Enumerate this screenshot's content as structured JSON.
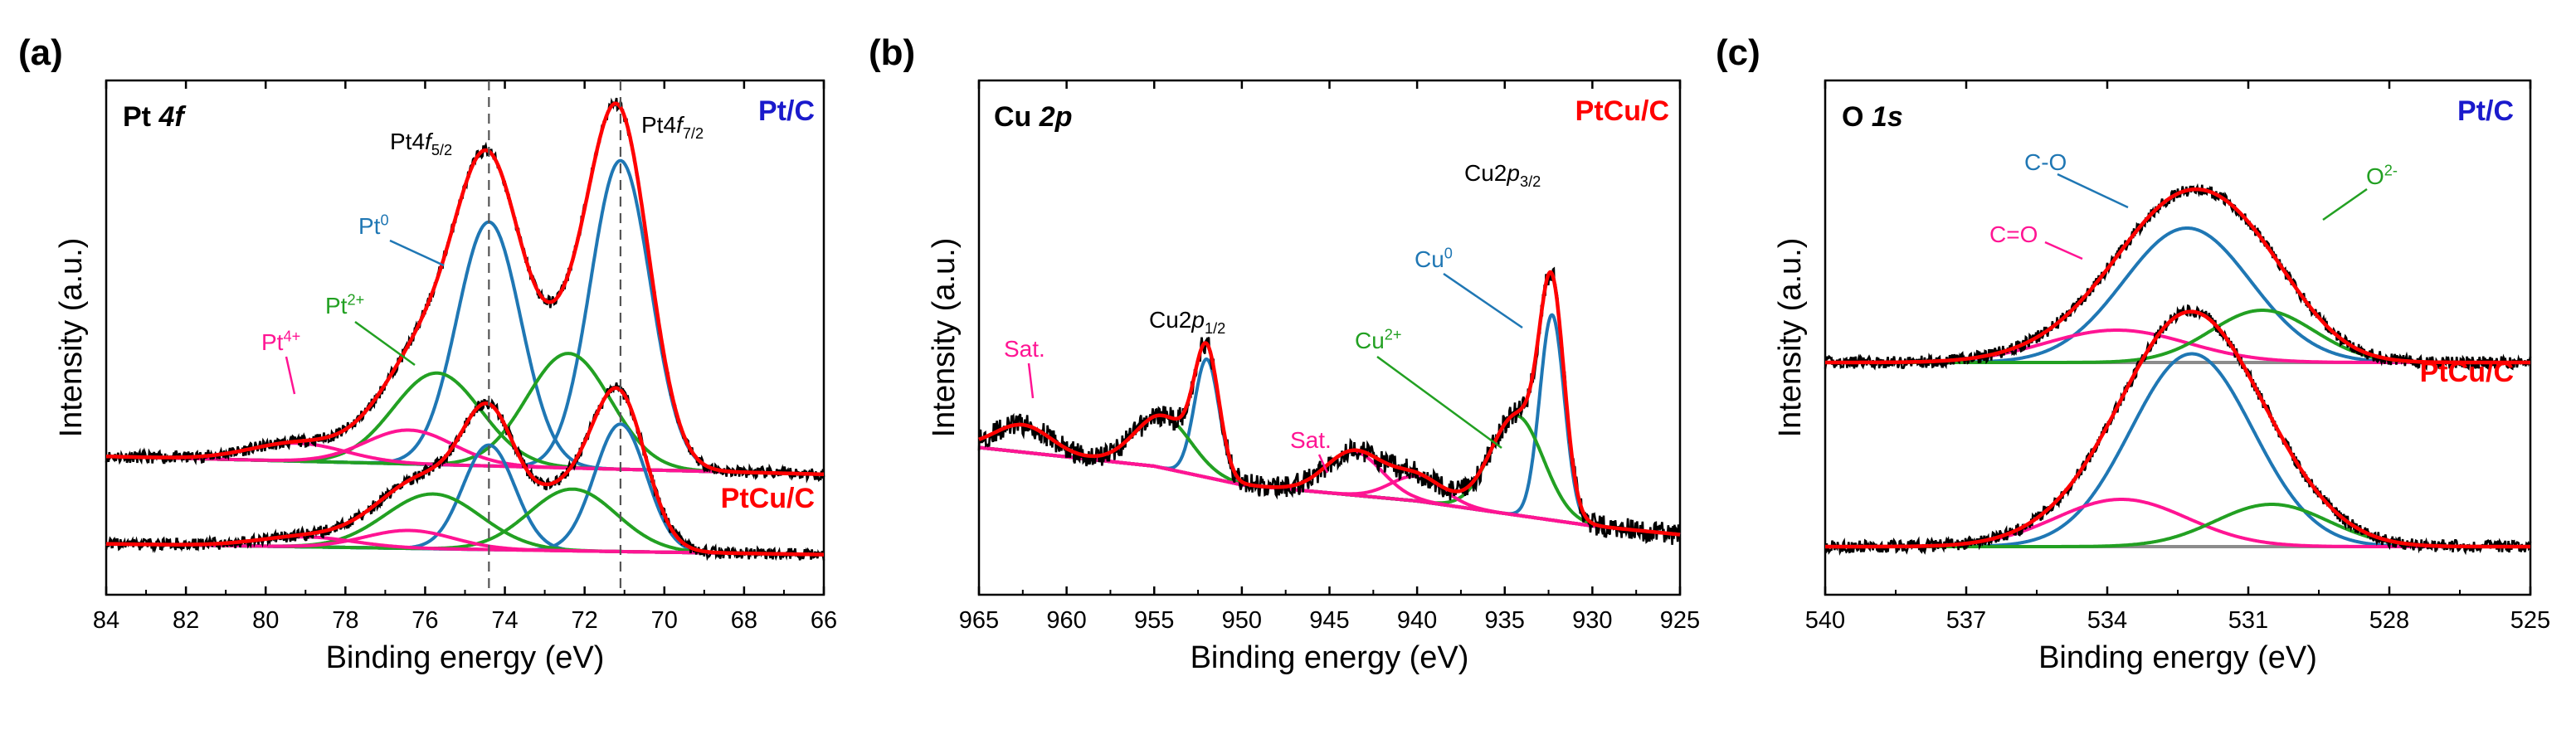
{
  "colors": {
    "raw": "#000000",
    "fit": "#ff0000",
    "background": "#8c8c8c",
    "pt0": "#1f77b4",
    "pt2": "#22a022",
    "pt4": "#ff1493",
    "cu0": "#1f77b4",
    "cu2": "#22a022",
    "sat": "#ff1493",
    "co": "#1f77b4",
    "c_eq_o": "#ff1493",
    "o2": "#22a022",
    "label_ptc": "#1a1acc",
    "label_ptcuc": "#ff0000"
  },
  "chart_data": [
    {
      "panel": "(a)",
      "type": "line",
      "title": "Pt 4f",
      "xlabel": "Binding energy (eV)",
      "ylabel": "Intensity (a.u.)",
      "xlim": [
        84,
        66
      ],
      "x_reversed": true,
      "xticks": [
        "84",
        "82",
        "80",
        "78",
        "76",
        "74",
        "72",
        "70",
        "68",
        "66"
      ],
      "reference_lines": [
        74.4,
        71.1
      ],
      "peak_labels": [
        "Pt4f5/2",
        "Pt4f7/2"
      ],
      "component_labels": [
        "Pt0",
        "Pt2+",
        "Pt4+"
      ],
      "samples": [
        {
          "name": "Pt/C",
          "baseline": 0.96,
          "components": [
            {
              "name": "Pt0",
              "center": 74.4,
              "width": 0.8,
              "height": 2.45
            },
            {
              "name": "Pt0",
              "center": 71.1,
              "width": 0.75,
              "height": 3.1
            },
            {
              "name": "Pt2+",
              "center": 75.7,
              "width": 1.1,
              "height": 0.92
            },
            {
              "name": "Pt2+",
              "center": 72.4,
              "width": 1.05,
              "height": 1.15
            },
            {
              "name": "Pt4+",
              "center": 79.2,
              "width": 1.2,
              "height": 0.18
            },
            {
              "name": "Pt4+",
              "center": 76.4,
              "width": 1.1,
              "height": 0.34
            }
          ]
        },
        {
          "name": "PtCu/C",
          "baseline": 0.22,
          "components": [
            {
              "name": "Pt0",
              "center": 74.4,
              "width": 0.65,
              "height": 1.05
            },
            {
              "name": "Pt0",
              "center": 71.1,
              "width": 0.65,
              "height": 1.28
            },
            {
              "name": "Pt2+",
              "center": 75.8,
              "width": 1.2,
              "height": 0.55
            },
            {
              "name": "Pt2+",
              "center": 72.3,
              "width": 1.1,
              "height": 0.62
            },
            {
              "name": "Pt4+",
              "center": 79.0,
              "width": 1.2,
              "height": 0.1
            },
            {
              "name": "Pt4+",
              "center": 76.4,
              "width": 1.1,
              "height": 0.18
            }
          ]
        }
      ]
    },
    {
      "panel": "(b)",
      "type": "line",
      "title": "Cu 2p",
      "sample": "PtCu/C",
      "xlabel": "Binding energy (eV)",
      "ylabel": "Intensity (a.u.)",
      "xlim": [
        965,
        925
      ],
      "x_reversed": true,
      "xticks": [
        "965",
        "960",
        "955",
        "950",
        "945",
        "940",
        "935",
        "930",
        "925"
      ],
      "peak_labels": [
        "Cu2p1/2",
        "Cu2p3/2"
      ],
      "component_labels": [
        "Cu0",
        "Cu2+",
        "Sat.",
        "Sat."
      ],
      "background_points": [
        [
          965,
          1.05
        ],
        [
          955,
          0.9
        ],
        [
          950,
          0.75
        ],
        [
          940,
          0.62
        ],
        [
          930,
          0.42
        ],
        [
          925,
          0.35
        ]
      ],
      "components": [
        {
          "name": "Cu0",
          "center": 932.3,
          "width": 0.7,
          "height": 1.65
        },
        {
          "name": "Cu0",
          "center": 952.0,
          "width": 0.7,
          "height": 0.95
        },
        {
          "name": "Cu2+",
          "center": 934.3,
          "width": 1.5,
          "height": 0.8
        },
        {
          "name": "Cu2+",
          "center": 954.5,
          "width": 1.6,
          "height": 0.42
        },
        {
          "name": "Sat.",
          "center": 943.6,
          "width": 1.6,
          "height": 0.35
        },
        {
          "name": "Sat.",
          "center": 940.0,
          "width": 1.5,
          "height": 0.2
        },
        {
          "name": "Sat.",
          "center": 962.5,
          "width": 1.6,
          "height": 0.22
        }
      ]
    },
    {
      "panel": "(c)",
      "type": "line",
      "title": "O 1s",
      "xlabel": "Binding energy (eV)",
      "ylabel": "Intensity (a.u.)",
      "xlim": [
        540,
        525
      ],
      "x_reversed": true,
      "xticks": [
        "540",
        "537",
        "534",
        "531",
        "528",
        "525"
      ],
      "component_labels": [
        "C-O",
        "C=O",
        "O2-"
      ],
      "samples": [
        {
          "name": "Pt/C",
          "baseline": 1.58,
          "components": [
            {
              "name": "C-O",
              "center": 532.3,
              "width": 1.35,
              "height": 1.08
            },
            {
              "name": "C=O",
              "center": 533.8,
              "width": 1.5,
              "height": 0.26
            },
            {
              "name": "O2-",
              "center": 530.7,
              "width": 1.1,
              "height": 0.42
            }
          ]
        },
        {
          "name": "PtCu/C",
          "baseline": 0.1,
          "components": [
            {
              "name": "C-O",
              "center": 532.2,
              "width": 1.3,
              "height": 1.55
            },
            {
              "name": "C=O",
              "center": 533.7,
              "width": 1.4,
              "height": 0.38
            },
            {
              "name": "O2-",
              "center": 530.5,
              "width": 1.2,
              "height": 0.34
            }
          ]
        }
      ]
    }
  ]
}
